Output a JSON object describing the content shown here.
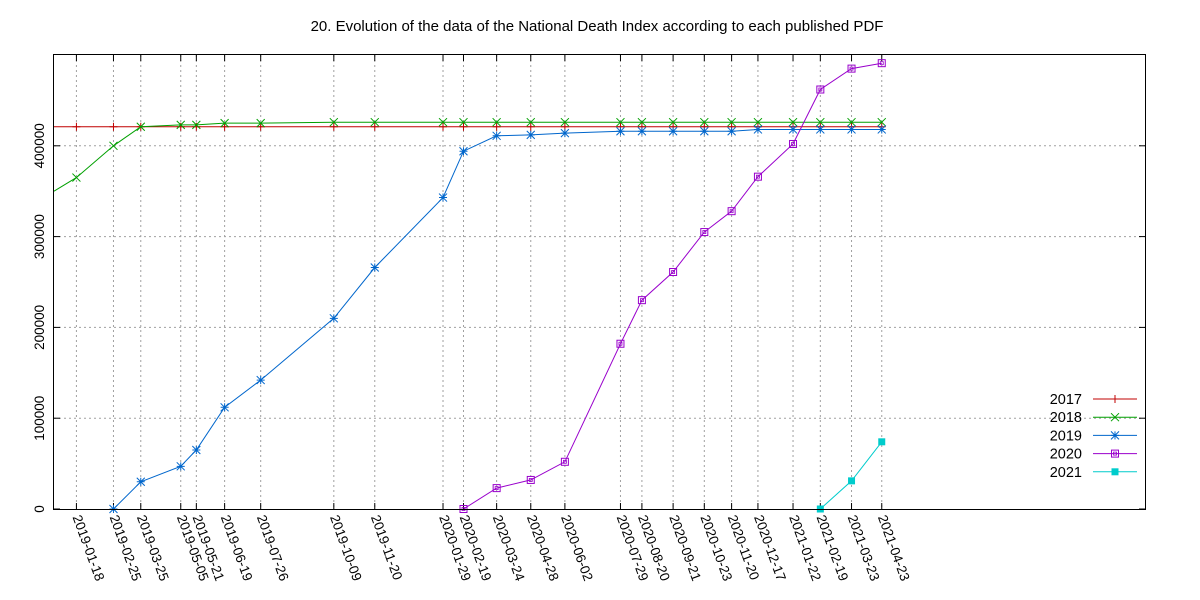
{
  "chart_data": {
    "type": "line",
    "title": "20. Evolution of the data of the National Death Index according to each published PDF",
    "x_dates": [
      "2019-01-18",
      "2019-02-25",
      "2019-03-25",
      "2019-05-05",
      "2019-05-21",
      "2019-06-19",
      "2019-07-26",
      "2019-10-09",
      "2019-11-20",
      "2020-01-29",
      "2020-02-19",
      "2020-03-24",
      "2020-04-28",
      "2020-06-02",
      "2020-07-29",
      "2020-08-20",
      "2020-09-21",
      "2020-10-23",
      "2020-11-20",
      "2020-12-17",
      "2021-01-22",
      "2021-02-19",
      "2021-03-23",
      "2021-04-23"
    ],
    "x_range": [
      "2018-12-26",
      "2022-01-18"
    ],
    "yticks": [
      "0",
      "100000",
      "200000",
      "300000",
      "400000"
    ],
    "ylim": [
      0,
      500000
    ],
    "grid": true,
    "legend_position": "bottom-right",
    "series": [
      {
        "name": "2017",
        "color": "#c00000",
        "marker": "plus",
        "x": [
          "2018-12-26",
          "2019-01-18",
          "2019-02-25",
          "2019-03-25",
          "2019-05-05",
          "2019-05-21",
          "2019-06-19",
          "2019-07-26",
          "2019-10-09",
          "2019-11-20",
          "2020-01-29",
          "2020-02-19",
          "2020-03-24",
          "2020-04-28",
          "2020-06-02",
          "2020-07-29",
          "2020-08-20",
          "2020-09-21",
          "2020-10-23",
          "2020-11-20",
          "2020-12-17",
          "2021-01-22",
          "2021-02-19",
          "2021-03-23",
          "2021-04-23"
        ],
        "values": [
          421000,
          421000,
          421000,
          421000,
          421000,
          421000,
          421000,
          421000,
          421000,
          421000,
          421000,
          421000,
          421000,
          421000,
          421000,
          421000,
          421000,
          421000,
          421000,
          421000,
          421000,
          421000,
          421000,
          421000,
          421000
        ],
        "marker_from": 1
      },
      {
        "name": "2018",
        "color": "#00a000",
        "marker": "cross",
        "x": [
          "2018-12-26",
          "2019-01-18",
          "2019-02-25",
          "2019-03-25",
          "2019-05-05",
          "2019-05-21",
          "2019-06-19",
          "2019-07-26",
          "2019-10-09",
          "2019-11-20",
          "2020-01-29",
          "2020-02-19",
          "2020-03-24",
          "2020-04-28",
          "2020-06-02",
          "2020-07-29",
          "2020-08-20",
          "2020-09-21",
          "2020-10-23",
          "2020-11-20",
          "2020-12-17",
          "2021-01-22",
          "2021-02-19",
          "2021-03-23",
          "2021-04-23"
        ],
        "values": [
          350000,
          365000,
          400000,
          421000,
          423000,
          423000,
          425000,
          425000,
          426000,
          426000,
          426000,
          426000,
          426000,
          426000,
          426000,
          426000,
          426000,
          426000,
          426000,
          426000,
          426000,
          426000,
          426000,
          426000,
          426000
        ],
        "marker_from": 1
      },
      {
        "name": "2019",
        "color": "#0066cc",
        "marker": "star",
        "x": [
          "2019-02-25",
          "2019-03-25",
          "2019-05-05",
          "2019-05-21",
          "2019-06-19",
          "2019-07-26",
          "2019-10-09",
          "2019-11-20",
          "2020-01-29",
          "2020-02-19",
          "2020-03-24",
          "2020-04-28",
          "2020-06-02",
          "2020-07-29",
          "2020-08-20",
          "2020-09-21",
          "2020-10-23",
          "2020-11-20",
          "2020-12-17",
          "2021-01-22",
          "2021-02-19",
          "2021-03-23",
          "2021-04-23"
        ],
        "values": [
          0,
          30000,
          47000,
          65000,
          112000,
          142000,
          210000,
          266000,
          343000,
          394000,
          411000,
          412000,
          414000,
          416000,
          416000,
          416000,
          416000,
          416000,
          418000,
          418000,
          418000,
          418000,
          418000
        ],
        "marker_from": 0
      },
      {
        "name": "2020",
        "color": "#9900cc",
        "marker": "square-open",
        "x": [
          "2020-02-19",
          "2020-03-24",
          "2020-04-28",
          "2020-06-02",
          "2020-07-29",
          "2020-08-20",
          "2020-09-21",
          "2020-10-23",
          "2020-11-20",
          "2020-12-17",
          "2021-01-22",
          "2021-02-19",
          "2021-03-23",
          "2021-04-23"
        ],
        "values": [
          0,
          23000,
          32000,
          52000,
          182000,
          230000,
          261000,
          305000,
          328000,
          366000,
          402000,
          462000,
          485000,
          491000
        ],
        "marker_from": 0
      },
      {
        "name": "2021",
        "color": "#00cccc",
        "marker": "square-filled",
        "x": [
          "2021-02-19",
          "2021-03-23",
          "2021-04-23"
        ],
        "values": [
          0,
          31000,
          74000
        ],
        "marker_from": 0
      }
    ]
  }
}
